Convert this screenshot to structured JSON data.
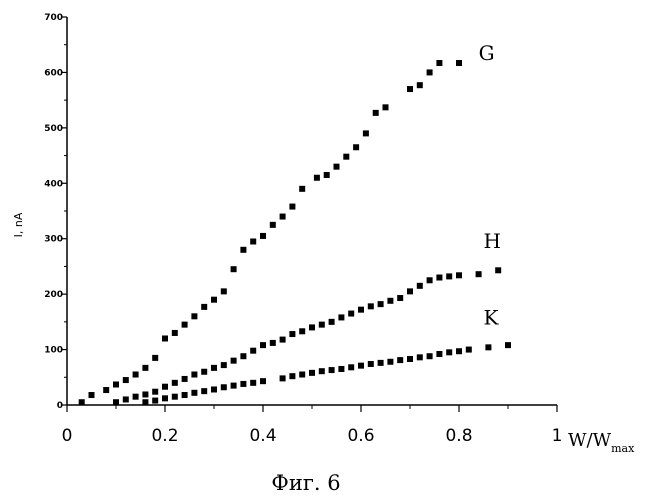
{
  "chart_data": {
    "type": "scatter",
    "caption": "Фиг. 6",
    "ylabel": "I, nA",
    "xlabel_main": "W/W",
    "xlabel_sub": "max",
    "xlim": [
      0,
      1
    ],
    "ylim": [
      0,
      700
    ],
    "x_ticks": [
      "0",
      "0.2",
      "0.4",
      "0.6",
      "0.8",
      "1"
    ],
    "y_ticks": [
      "0",
      "100",
      "200",
      "300",
      "400",
      "500",
      "600",
      "700"
    ],
    "series": [
      {
        "name": "G",
        "x": [
          0.03,
          0.05,
          0.08,
          0.1,
          0.12,
          0.14,
          0.16,
          0.18,
          0.2,
          0.22,
          0.24,
          0.26,
          0.28,
          0.3,
          0.32,
          0.34,
          0.36,
          0.38,
          0.4,
          0.42,
          0.44,
          0.46,
          0.48,
          0.51,
          0.53,
          0.55,
          0.57,
          0.59,
          0.61,
          0.63,
          0.65,
          0.7,
          0.72,
          0.74,
          0.76,
          0.8
        ],
        "y": [
          5,
          18,
          27,
          37,
          45,
          55,
          67,
          85,
          120,
          130,
          145,
          160,
          177,
          190,
          205,
          245,
          280,
          295,
          305,
          325,
          340,
          358,
          390,
          410,
          415,
          430,
          448,
          465,
          490,
          527,
          537,
          570,
          577,
          600,
          617,
          617
        ]
      },
      {
        "name": "H",
        "x": [
          0.1,
          0.12,
          0.14,
          0.16,
          0.18,
          0.2,
          0.22,
          0.24,
          0.26,
          0.28,
          0.3,
          0.32,
          0.34,
          0.36,
          0.38,
          0.4,
          0.42,
          0.44,
          0.46,
          0.48,
          0.5,
          0.52,
          0.54,
          0.56,
          0.58,
          0.6,
          0.62,
          0.64,
          0.66,
          0.68,
          0.7,
          0.72,
          0.74,
          0.76,
          0.78,
          0.8,
          0.84,
          0.88
        ],
        "y": [
          5,
          10,
          15,
          19,
          24,
          33,
          40,
          47,
          55,
          60,
          67,
          72,
          80,
          88,
          98,
          108,
          112,
          118,
          128,
          133,
          140,
          145,
          150,
          158,
          165,
          172,
          178,
          182,
          188,
          193,
          205,
          215,
          225,
          230,
          232,
          234,
          236,
          243
        ]
      },
      {
        "name": "K",
        "x": [
          0.16,
          0.18,
          0.2,
          0.22,
          0.24,
          0.26,
          0.28,
          0.3,
          0.32,
          0.34,
          0.36,
          0.38,
          0.4,
          0.44,
          0.46,
          0.48,
          0.5,
          0.52,
          0.54,
          0.56,
          0.58,
          0.6,
          0.62,
          0.64,
          0.66,
          0.68,
          0.7,
          0.72,
          0.74,
          0.76,
          0.78,
          0.8,
          0.82,
          0.86,
          0.9
        ],
        "y": [
          5,
          8,
          12,
          15,
          18,
          22,
          25,
          28,
          32,
          35,
          38,
          40,
          43,
          48,
          52,
          55,
          58,
          61,
          63,
          65,
          68,
          71,
          74,
          76,
          78,
          81,
          83,
          86,
          88,
          92,
          95,
          97,
          100,
          104,
          108
        ]
      }
    ],
    "series_label_positions": {
      "G": {
        "x": 0.84,
        "y": 622
      },
      "H": {
        "x": 0.85,
        "y": 283
      },
      "K": {
        "x": 0.85,
        "y": 145
      }
    },
    "grid": false
  }
}
